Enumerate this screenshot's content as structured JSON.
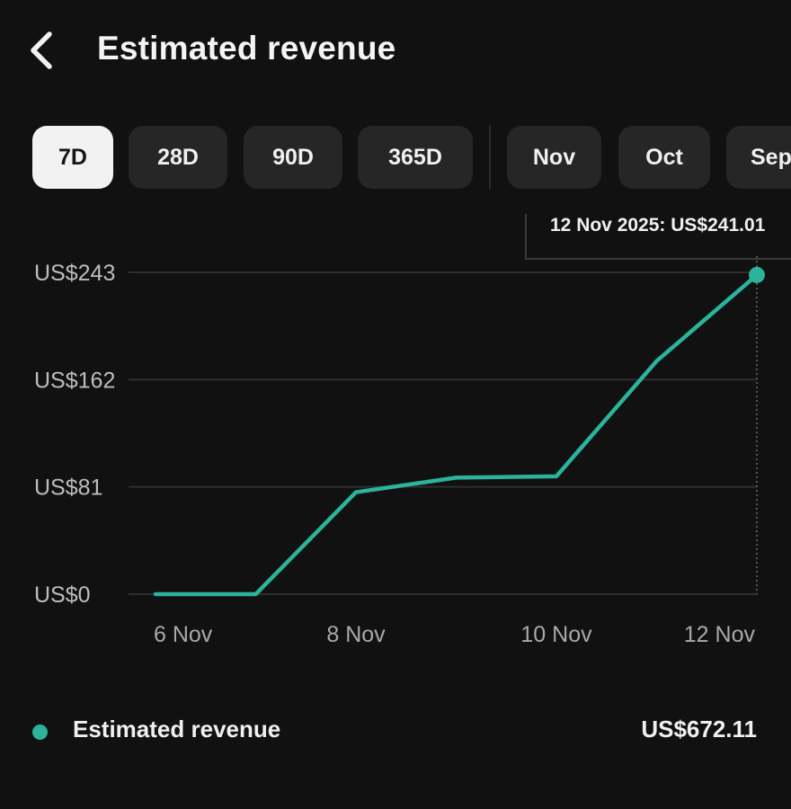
{
  "header": {
    "title": "Estimated revenue",
    "back_icon": "chevron-left-icon"
  },
  "ranges": [
    {
      "label": "7D",
      "active": true
    },
    {
      "label": "28D",
      "active": false
    },
    {
      "label": "90D",
      "active": false
    },
    {
      "label": "365D",
      "active": false
    }
  ],
  "months": [
    {
      "label": "Nov"
    },
    {
      "label": "Oct"
    },
    {
      "label": "Sep"
    }
  ],
  "colors": {
    "background": "#111111",
    "line": "#2bb39c",
    "chip": "#262626",
    "chip_active": "#f2f2f2",
    "grid": "#2e2e2e"
  },
  "chart_data": {
    "type": "line",
    "x": [
      "6 Nov",
      "7 Nov",
      "8 Nov",
      "9 Nov",
      "10 Nov",
      "11 Nov",
      "12 Nov"
    ],
    "x_tick_labels": [
      "6 Nov",
      "8 Nov",
      "10 Nov",
      "12 Nov"
    ],
    "series": [
      {
        "name": "Estimated revenue",
        "values": [
          0,
          0,
          77,
          88,
          89,
          176,
          241.01
        ]
      }
    ],
    "y_ticks": [
      0,
      81,
      162,
      243
    ],
    "y_tick_labels": [
      "US$0",
      "US$81",
      "US$162",
      "US$243"
    ],
    "ylim": [
      0,
      243
    ],
    "grid": true,
    "tooltip": "12 Nov 2025: US$241.01"
  },
  "legend": {
    "label": "Estimated revenue",
    "total": "US$672.11"
  }
}
